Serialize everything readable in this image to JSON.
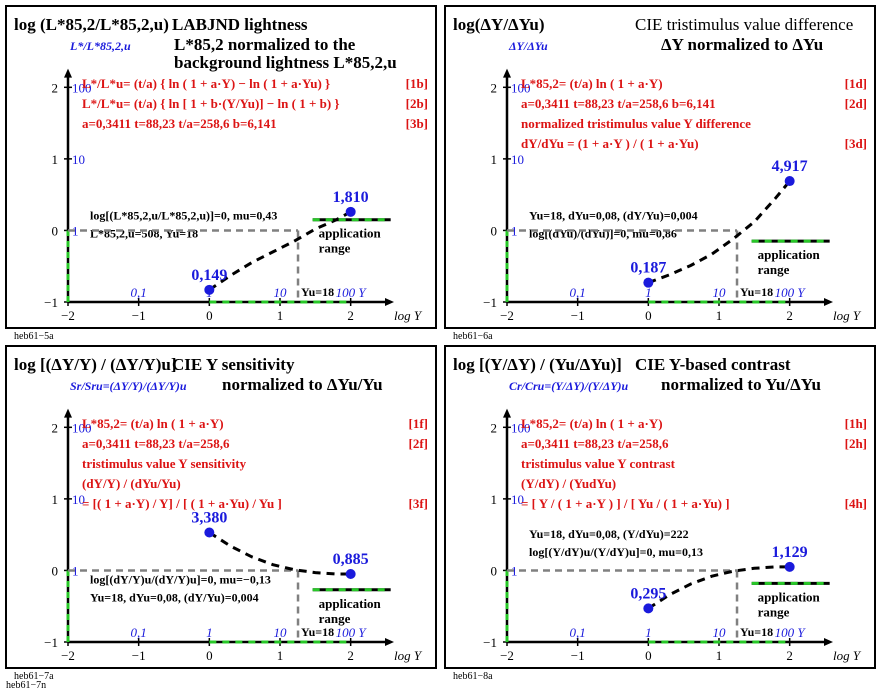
{
  "figure_code": "heb61−7n",
  "chart_data": [
    {
      "type": "line",
      "code": "heb61−5a",
      "title_left": "log (L*85,2/L*85,2,u)",
      "title_right": "LABJND lightness",
      "subtitle_lines": [
        "L*85,2 normalized to the",
        "background lightness L*85,2,u"
      ],
      "y_unit_label": "L*/L*85,2,u",
      "y_ticks": [
        {
          "v": -1,
          "log": "−1",
          "lin": ""
        },
        {
          "v": 0,
          "log": "0",
          "lin": "1"
        },
        {
          "v": 1,
          "log": "1",
          "lin": "10"
        },
        {
          "v": 2,
          "log": "2",
          "lin": "100"
        }
      ],
      "x_ticks": [
        {
          "v": -2,
          "log": "−2",
          "lin": ""
        },
        {
          "v": -1,
          "log": "−1",
          "lin": "0,1"
        },
        {
          "v": 0,
          "log": "0",
          "lin": "1"
        },
        {
          "v": 1,
          "log": "1",
          "lin": "10"
        },
        {
          "v": 2,
          "log": "2",
          "lin": "100 Y"
        }
      ],
      "xlabel": "log Y",
      "xlim": [
        -2,
        2.5
      ],
      "ylim": [
        -1,
        2.2
      ],
      "red_lines": [
        {
          "text": "L*/L*u= (t/a) { ln ( 1 + a·Y) − ln ( 1 + a·Yu) }",
          "tag": "[1b]"
        },
        {
          "text": "L*/L*u= (t/a) { ln [ 1 + b·(Y/Yu)] − ln ( 1 + b) }",
          "tag": "[2b]"
        },
        {
          "text": "a=0,3411     t=88,23     t/a=258,6     b=6,141",
          "tag": "[3b]"
        }
      ],
      "black_lines": [
        "log[(L*85,2,u/L*85,2,u)]=0, mu=0,43",
        "L*85,2,u=508, Yu=18"
      ],
      "black_top": 0.15,
      "curve": {
        "x": [
          0,
          0.3,
          0.6,
          0.9,
          1.2,
          1.5,
          1.8,
          2.0
        ],
        "y": [
          -0.83,
          -0.63,
          -0.45,
          -0.3,
          -0.15,
          0.02,
          0.15,
          0.26
        ]
      },
      "start_point": {
        "x": 0,
        "y": -0.83,
        "label": "0,149"
      },
      "end_point": {
        "x": 2,
        "y": 0.26,
        "label": "1,810"
      },
      "ref_log_Yu": 1.255,
      "ref_y": 0,
      "yu_label": "Yu=18",
      "app_label": [
        "application",
        "range"
      ],
      "app_y": 0.15
    },
    {
      "type": "line",
      "code": "heb61−6a",
      "title_left": "log(ΔY/ΔYu)",
      "title_right": "CIE tristimulus value difference",
      "subtitle_lines": [
        "ΔY normalized to ΔYu"
      ],
      "y_unit_label": "ΔY/ΔYu",
      "y_ticks": [
        {
          "v": -1,
          "log": "−1",
          "lin": ""
        },
        {
          "v": 0,
          "log": "0",
          "lin": "1"
        },
        {
          "v": 1,
          "log": "1",
          "lin": "10"
        },
        {
          "v": 2,
          "log": "2",
          "lin": "100"
        }
      ],
      "x_ticks": [
        {
          "v": -2,
          "log": "−2",
          "lin": ""
        },
        {
          "v": -1,
          "log": "−1",
          "lin": "0,1"
        },
        {
          "v": 0,
          "log": "0",
          "lin": "1"
        },
        {
          "v": 1,
          "log": "1",
          "lin": "10"
        },
        {
          "v": 2,
          "log": "2",
          "lin": "100 Y"
        }
      ],
      "xlabel": "log Y",
      "xlim": [
        -2,
        2.5
      ],
      "ylim": [
        -1,
        2.2
      ],
      "red_lines": [
        {
          "text": "L*85,2= (t/a) ln ( 1 + a·Y)",
          "tag": "[1d]"
        },
        {
          "text": "a=0,3411     t=88,23     t/a=258,6     b=6,141",
          "tag": "[2d]"
        },
        {
          "text": "normalized tristimulus value Y difference",
          "tag": ""
        },
        {
          "text": "dY/dYu = (1 + a·Y ) / ( 1 + a·Yu)",
          "tag": "[3d]"
        }
      ],
      "black_lines": [
        "Yu=18, dYu=0,08, (dY/Yu)=0,004",
        "log[(dYu)/(dYu)]=0, mu=0,86"
      ],
      "black_top": 0.15,
      "curve": {
        "x": [
          0,
          0.3,
          0.6,
          0.9,
          1.2,
          1.5,
          1.8,
          2.0
        ],
        "y": [
          -0.73,
          -0.62,
          -0.49,
          -0.33,
          -0.12,
          0.12,
          0.45,
          0.69
        ]
      },
      "start_point": {
        "x": 0,
        "y": -0.73,
        "label": "0,187"
      },
      "end_point": {
        "x": 2,
        "y": 0.69,
        "label": "4,917"
      },
      "ref_log_Yu": 1.255,
      "ref_y": 0,
      "yu_label": "Yu=18",
      "app_label": [
        "application",
        "range"
      ],
      "app_y": -0.15
    },
    {
      "type": "line",
      "code": "heb61−7a",
      "title_left": "log [(ΔY/Y) / (ΔY/Y)u]",
      "title_right": "CIE Y sensitivity",
      "subtitle_lines": [
        "normalized to ΔYu/Yu"
      ],
      "y_unit_label": "Sr/Sru=(ΔY/Y)/(ΔY/Y)u",
      "y_ticks": [
        {
          "v": -1,
          "log": "−1",
          "lin": ""
        },
        {
          "v": 0,
          "log": "0",
          "lin": "1"
        },
        {
          "v": 1,
          "log": "1",
          "lin": "10"
        },
        {
          "v": 2,
          "log": "2",
          "lin": "100"
        }
      ],
      "x_ticks": [
        {
          "v": -2,
          "log": "−2",
          "lin": ""
        },
        {
          "v": -1,
          "log": "−1",
          "lin": "0,1"
        },
        {
          "v": 0,
          "log": "0",
          "lin": "1"
        },
        {
          "v": 1,
          "log": "1",
          "lin": "10"
        },
        {
          "v": 2,
          "log": "2",
          "lin": "100 Y"
        }
      ],
      "xlabel": "log Y",
      "xlim": [
        -2,
        2.5
      ],
      "ylim": [
        -1,
        2.2
      ],
      "red_lines": [
        {
          "text": "L*85,2= (t/a) ln ( 1 + a·Y)",
          "tag": "[1f]"
        },
        {
          "text": "a=0,3411     t=88,23     t/a=258,6",
          "tag": "[2f]"
        },
        {
          "text": "tristimulus value Y sensitivity",
          "tag": ""
        },
        {
          "text": "(dY/Y) / (dYu/Yu)",
          "tag": ""
        },
        {
          "text": "     = [( 1 + a·Y) / Y] / [ ( 1 + a·Yu) / Yu ]",
          "tag": "[3f]"
        }
      ],
      "black_lines": [
        "log[(dY/Y)u/(dY/Y)u]=0, mu=−0,13",
        "Yu=18, dYu=0,08, (dY/Yu)=0,004"
      ],
      "black_top": -0.18,
      "curve": {
        "x": [
          0,
          0.3,
          0.6,
          0.9,
          1.2,
          1.5,
          1.8,
          2.0
        ],
        "y": [
          0.53,
          0.34,
          0.19,
          0.08,
          0.01,
          -0.03,
          -0.05,
          -0.05
        ]
      },
      "start_point": {
        "x": 0,
        "y": 0.53,
        "label": "3,380"
      },
      "end_point": {
        "x": 2,
        "y": -0.05,
        "label": "0,885"
      },
      "ref_log_Yu": 1.255,
      "ref_y": 0,
      "yu_label": "Yu=18",
      "app_label": [
        "application",
        "range"
      ],
      "app_y": -0.27
    },
    {
      "type": "line",
      "code": "heb61−8a",
      "title_left": "log [(Y/ΔY) / (Yu/ΔYu)]",
      "title_right": "CIE Y-based contrast",
      "subtitle_lines": [
        "normalized to Yu/ΔYu"
      ],
      "y_unit_label": "Cr/Cru=(Y/ΔY)/(Y/ΔY)u",
      "y_ticks": [
        {
          "v": -1,
          "log": "−1",
          "lin": ""
        },
        {
          "v": 0,
          "log": "0",
          "lin": "1"
        },
        {
          "v": 1,
          "log": "1",
          "lin": "10"
        },
        {
          "v": 2,
          "log": "2",
          "lin": "100"
        }
      ],
      "x_ticks": [
        {
          "v": -2,
          "log": "−2",
          "lin": ""
        },
        {
          "v": -1,
          "log": "−1",
          "lin": "0,1"
        },
        {
          "v": 0,
          "log": "0",
          "lin": "1"
        },
        {
          "v": 1,
          "log": "1",
          "lin": "10"
        },
        {
          "v": 2,
          "log": "2",
          "lin": "100 Y"
        }
      ],
      "xlabel": "log Y",
      "xlim": [
        -2,
        2.5
      ],
      "ylim": [
        -1,
        2.2
      ],
      "red_lines": [
        {
          "text": "L*85,2= (t/a) ln ( 1 + a·Y)",
          "tag": "[1h]"
        },
        {
          "text": "a=0,3411     t=88,23     t/a=258,6",
          "tag": "[2h]"
        },
        {
          "text": "tristimulus value Y contrast",
          "tag": ""
        },
        {
          "text": "(Y/dY) / (YudYu)",
          "tag": ""
        },
        {
          "text": "= [ Y / ( 1 + a·Y ) ] / [ Yu / ( 1 + a·Yu) ]",
          "tag": "[4h]"
        }
      ],
      "black_lines": [
        "Yu=18, dYu=0,08, (Y/dYu)=222",
        "log[(Y/dY)u/(Y/dY)u]=0, mu=0,13"
      ],
      "black_top": 0.45,
      "curve": {
        "x": [
          0,
          0.3,
          0.6,
          0.9,
          1.2,
          1.5,
          1.8,
          2.0
        ],
        "y": [
          -0.53,
          -0.34,
          -0.19,
          -0.08,
          -0.01,
          0.03,
          0.05,
          0.05
        ]
      },
      "start_point": {
        "x": 0,
        "y": -0.53,
        "label": "0,295"
      },
      "end_point": {
        "x": 2,
        "y": 0.05,
        "label": "1,129"
      },
      "ref_log_Yu": 1.255,
      "ref_y": 0,
      "yu_label": "Yu=18",
      "app_label": [
        "application",
        "range"
      ],
      "app_y": -0.18
    }
  ]
}
